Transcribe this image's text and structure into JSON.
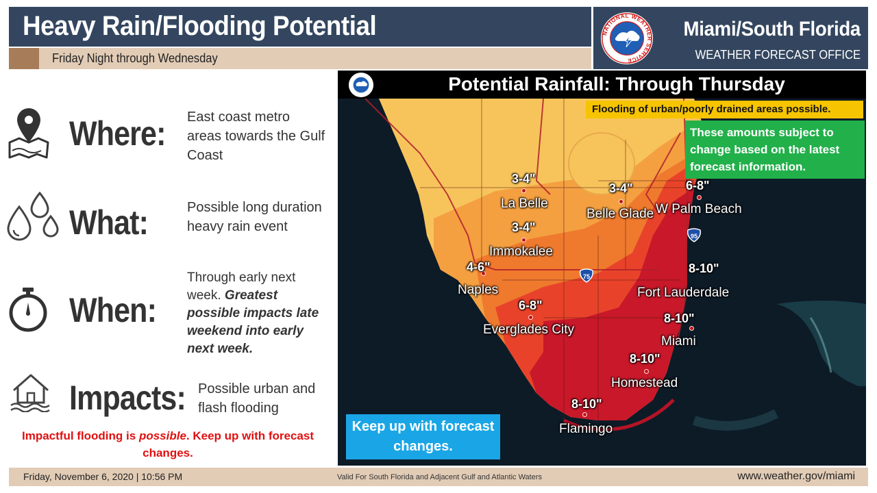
{
  "header": {
    "title": "Heavy Rain/Flooding Potential",
    "subtitle": "Friday Night through Wednesday",
    "office_name": "Miami/South Florida",
    "office_sub": "WEATHER FORECAST OFFICE",
    "logo_text": "NATIONAL WEATHER SERVICE"
  },
  "rows": [
    {
      "heading": "Where:",
      "icon": "map-pin-icon",
      "text": "East coast metro areas towards the Gulf Coast"
    },
    {
      "heading": "What:",
      "icon": "raindrops-icon",
      "text": "Possible long duration heavy rain event"
    },
    {
      "heading": "When:",
      "icon": "stopwatch-icon",
      "text_plain": "Through early next week.",
      "text_bold": "Greatest possible impacts late weekend into early next week."
    },
    {
      "heading": "Impacts:",
      "icon": "flooded-house-icon",
      "text": "Possible urban and flash flooding"
    }
  ],
  "impact_note": "Impactful flooding is possible. Keep up with forecast changes.",
  "impact_note_parts": {
    "before": "Impactful flooding is ",
    "italic": "possible",
    "after": ". Keep up with forecast changes."
  },
  "map": {
    "title": "Potential Rainfall: Through Thursday",
    "yellow_note": "Flooding of urban/poorly drained areas possible.",
    "green_note": "These amounts subject to change based on the latest forecast information.",
    "blue_note": "Keep up with forecast changes.",
    "highways": [
      "95",
      "75"
    ],
    "locations": [
      {
        "name": "La Belle",
        "amount": "3-4\""
      },
      {
        "name": "Belle Glade",
        "amount": "3-4\""
      },
      {
        "name": "W Palm Beach",
        "amount": "6-8\""
      },
      {
        "name": "Immokalee",
        "amount": "3-4\""
      },
      {
        "name": "Naples",
        "amount": "4-6\""
      },
      {
        "name": "Fort Lauderdale",
        "amount": "8-10\""
      },
      {
        "name": "Everglades City",
        "amount": "6-8\""
      },
      {
        "name": "Miami",
        "amount": "8-10\""
      },
      {
        "name": "Homestead",
        "amount": "8-10\""
      },
      {
        "name": "Flamingo",
        "amount": "8-10\""
      }
    ],
    "colors": {
      "light": "#f7c45c",
      "moderate": "#f4a041",
      "heavy": "#ef7a2e",
      "very_heavy": "#e8432a",
      "extreme": "#c8182a",
      "water": "#0b1a26"
    }
  },
  "footer": {
    "date": "Friday, November 6, 2020 | 10:56 PM",
    "valid": "Valid For South Florida and Adjacent Gulf and Atlantic Waters",
    "url": "www.weather.gov/miami"
  }
}
